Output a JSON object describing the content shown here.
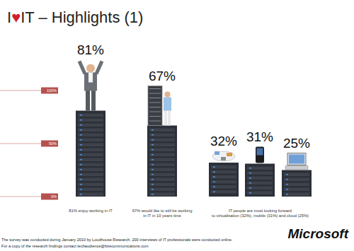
{
  "chart_data": {
    "type": "bar",
    "title": "I♥IT – Highlights (1)",
    "categories": [
      "81% enjoy working in IT",
      "67% would like to still be working\nin IT in 10 years time",
      null,
      null,
      null
    ],
    "values": [
      81,
      67,
      32,
      31,
      25
    ],
    "value_labels": [
      "81%",
      "67%",
      "32%",
      "31%",
      "25%"
    ],
    "color": "#2c3038",
    "ylim": [
      0,
      100
    ],
    "yticks": [
      {
        "value": 0,
        "label": "0%"
      },
      {
        "value": 50,
        "label": "50%"
      },
      {
        "value": 100,
        "label": "100%"
      }
    ],
    "grid": false,
    "data_labels": true,
    "annotations": [
      "IT people are most looking forward\nto virtualisation (32%), mobile (31%) and cloud (25%)",
      "The survey was conducted during January 2010 by Loudhouse Research. 200 interviews of IT professionals were conducted online.",
      "For a copy of the research findings contact techaudience@bitecommunications.com",
      "Microsoft"
    ]
  }
}
